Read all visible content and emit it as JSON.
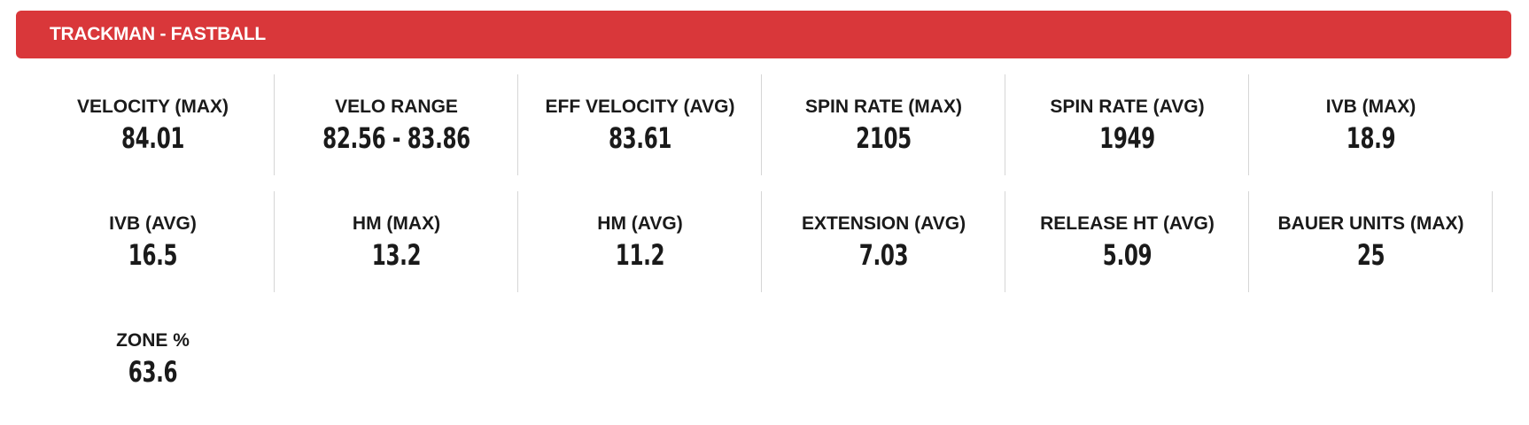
{
  "header": {
    "title": "TRACKMAN - FASTBALL"
  },
  "stats": [
    {
      "label": "VELOCITY (MAX)",
      "value": "84.01"
    },
    {
      "label": "VELO RANGE",
      "value": "82.56 - 83.86"
    },
    {
      "label": "EFF VELOCITY (AVG)",
      "value": "83.61"
    },
    {
      "label": "SPIN RATE (MAX)",
      "value": "2105"
    },
    {
      "label": "SPIN RATE (AVG)",
      "value": "1949"
    },
    {
      "label": "IVB (MAX)",
      "value": "18.9"
    },
    {
      "label": "IVB (AVG)",
      "value": "16.5"
    },
    {
      "label": "HM (MAX)",
      "value": "13.2"
    },
    {
      "label": "HM (AVG)",
      "value": "11.2"
    },
    {
      "label": "EXTENSION (AVG)",
      "value": "7.03"
    },
    {
      "label": "RELEASE HT (AVG)",
      "value": "5.09"
    },
    {
      "label": "BAUER UNITS (MAX)",
      "value": "25"
    },
    {
      "label": "ZONE %",
      "value": "63.6"
    }
  ],
  "colors": {
    "header_background": "#d9373a",
    "header_text": "#ffffff",
    "divider": "#d6d6d6",
    "text": "#1a1a1a"
  }
}
